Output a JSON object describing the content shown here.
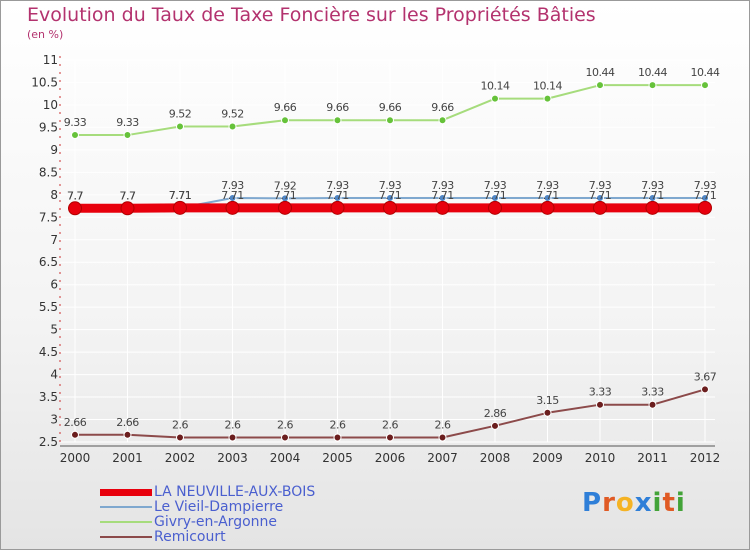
{
  "title": "Evolution du Taux de Taxe Foncière sur les Propriétés Bâties",
  "subtitle": "(en %)",
  "logo": {
    "text": "Proxiti",
    "letters": [
      {
        "ch": "P",
        "color": "#2f7fd8"
      },
      {
        "ch": "r",
        "color": "#e05a24"
      },
      {
        "ch": "o",
        "color": "#f5b324"
      },
      {
        "ch": "x",
        "color": "#2f7fd8"
      },
      {
        "ch": "i",
        "color": "#43a338"
      },
      {
        "ch": "t",
        "color": "#e05a24"
      },
      {
        "ch": "i",
        "color": "#43a338"
      }
    ]
  },
  "chart_data": {
    "type": "line",
    "title": "Evolution du Taux de Taxe Foncière sur les Propriétés Bâties",
    "ylabel": "(en %)",
    "ylim": [
      2.5,
      11
    ],
    "yticks": [
      2.5,
      3,
      3.5,
      4,
      4.5,
      5,
      5.5,
      6,
      6.5,
      7,
      7.5,
      8,
      8.5,
      9,
      9.5,
      10,
      10.5,
      11
    ],
    "ytick_labels": [
      "2.5",
      "3",
      "3.5",
      "4",
      "4.5",
      "5",
      "5.5",
      "6",
      "6.5",
      "7",
      "7.5",
      "8",
      "8.5",
      "9",
      "9.5",
      "10",
      "10.5",
      "11"
    ],
    "categories": [
      "2000",
      "2001",
      "2002",
      "2003",
      "2004",
      "2005",
      "2006",
      "2007",
      "2008",
      "2009",
      "2010",
      "2011",
      "2012"
    ],
    "series": [
      {
        "name": "LA NEUVILLE-AUX-BOIS",
        "color": "#e8000d",
        "marker_color": "#e8000d",
        "values": [
          7.7,
          7.7,
          7.71,
          7.71,
          7.71,
          7.71,
          7.71,
          7.71,
          7.71,
          7.71,
          7.71,
          7.71,
          7.71
        ],
        "labels": [
          "7.7",
          "7.7",
          "7.71",
          "7.71",
          "7.71",
          "7.71",
          "7.71",
          "7.71",
          "7.71",
          "7.71",
          "7.71",
          "7.71",
          "7.71"
        ]
      },
      {
        "name": "Le Vieil-Dampierre",
        "color": "#7fa8cf",
        "marker_color": "#4f86c6",
        "values": [
          7.7,
          7.7,
          7.71,
          7.93,
          7.92,
          7.93,
          7.93,
          7.93,
          7.93,
          7.93,
          7.93,
          7.93,
          7.93
        ],
        "labels": [
          "7.7",
          "7.7",
          "7.71",
          "7.93",
          "7.92",
          "7.93",
          "7.93",
          "7.93",
          "7.93",
          "7.93",
          "7.93",
          "7.93",
          "7.93"
        ]
      },
      {
        "name": "Givry-en-Argonne",
        "color": "#a6dc7c",
        "marker_color": "#66c23a",
        "values": [
          9.33,
          9.33,
          9.52,
          9.52,
          9.66,
          9.66,
          9.66,
          9.66,
          10.14,
          10.14,
          10.44,
          10.44,
          10.44
        ],
        "labels": [
          "9.33",
          "9.33",
          "9.52",
          "9.52",
          "9.66",
          "9.66",
          "9.66",
          "9.66",
          "10.14",
          "10.14",
          "10.44",
          "10.44",
          "10.44"
        ]
      },
      {
        "name": "Remicourt",
        "color": "#8c4a4a",
        "marker_color": "#6b1e1e",
        "values": [
          2.66,
          2.66,
          2.6,
          2.6,
          2.6,
          2.6,
          2.6,
          2.6,
          2.86,
          3.15,
          3.33,
          3.33,
          3.67
        ],
        "labels": [
          "2.66",
          "2.66",
          "2.6",
          "2.6",
          "2.6",
          "2.6",
          "2.6",
          "2.6",
          "2.86",
          "3.15",
          "3.33",
          "3.33",
          "3.67"
        ]
      }
    ],
    "legend_position": "bottom-left",
    "grid": true
  }
}
